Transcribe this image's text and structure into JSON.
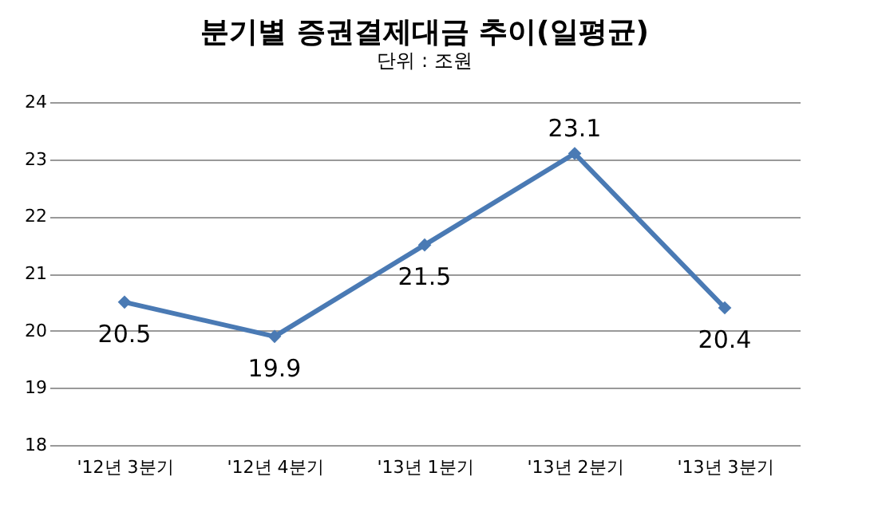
{
  "chart_data": {
    "type": "line",
    "title": "분기별 증권결제대금 추이(일평균)",
    "subtitle": "단위 : 조원",
    "categories": [
      "'12년 3분기",
      "'12년 4분기",
      "'13년 1분기",
      "'13년 2분기",
      "'13년 3분기"
    ],
    "series": [
      {
        "color": "#4a7ab4",
        "values": [
          20.5,
          19.9,
          21.5,
          23.1,
          20.4
        ]
      }
    ],
    "ylim": [
      18,
      24
    ],
    "yticks": [
      18,
      19,
      20,
      21,
      22,
      23,
      24
    ],
    "grid": "y",
    "marker": "diamond",
    "line_style": "solid",
    "data_labels": true
  }
}
